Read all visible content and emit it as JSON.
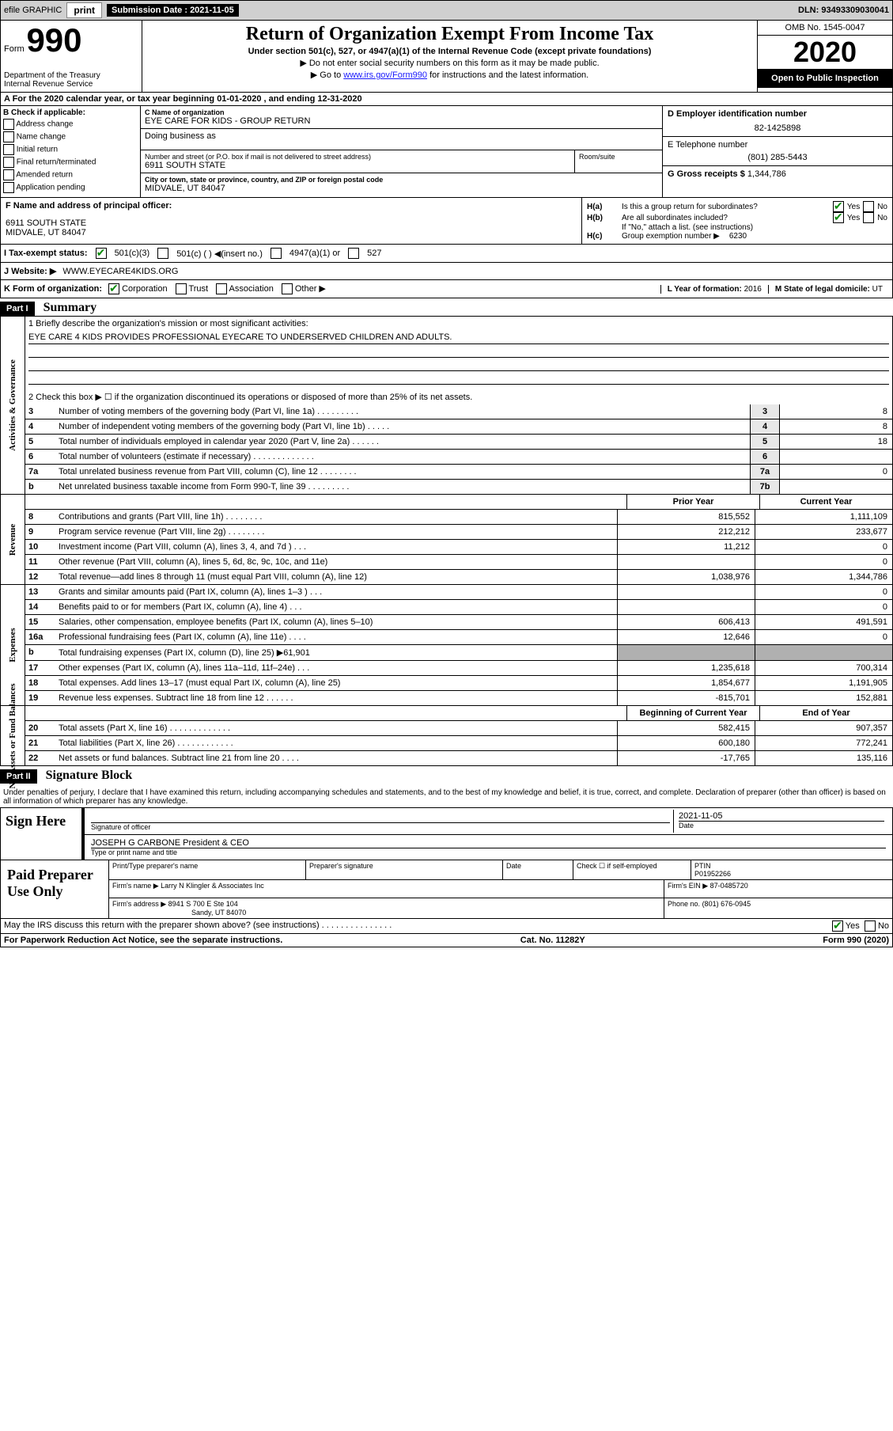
{
  "topbar": {
    "efile": "efile GRAPHIC",
    "print": "print",
    "sub_label": "Submission Date :",
    "sub_date": "2021-11-05",
    "dln": "DLN: 93493309030041"
  },
  "header": {
    "form": "Form",
    "num": "990",
    "dept": "Department of the Treasury",
    "irs": "Internal Revenue Service",
    "title": "Return of Organization Exempt From Income Tax",
    "sub": "Under section 501(c), 527, or 4947(a)(1) of the Internal Revenue Code (except private foundations)",
    "inst1": "▶ Do not enter social security numbers on this form as it may be made public.",
    "inst2_a": "▶ Go to ",
    "inst2_link": "www.irs.gov/Form990",
    "inst2_b": " for instructions and the latest information.",
    "omb": "OMB No. 1545-0047",
    "year": "2020",
    "inspection": "Open to Public Inspection"
  },
  "a_line": "A For the 2020 calendar year, or tax year beginning 01-01-2020    , and ending 12-31-2020",
  "b": {
    "label": "B Check if applicable:",
    "items": [
      "Address change",
      "Name change",
      "Initial return",
      "Final return/terminated",
      "Amended return",
      "Application pending"
    ]
  },
  "c": {
    "name_lbl": "C Name of organization",
    "name": "EYE CARE FOR KIDS - GROUP RETURN",
    "dba_lbl": "Doing business as",
    "addr_lbl": "Number and street (or P.O. box if mail is not delivered to street address)",
    "room_lbl": "Room/suite",
    "addr": "6911 SOUTH STATE",
    "city_lbl": "City or town, state or province, country, and ZIP or foreign postal code",
    "city": "MIDVALE, UT  84047"
  },
  "d": {
    "ein_lbl": "D Employer identification number",
    "ein": "82-1425898",
    "tel_lbl": "E Telephone number",
    "tel": "(801) 285-5443",
    "g_lbl": "G Gross receipts $",
    "g_val": "1,344,786"
  },
  "f": {
    "label": "F  Name and address of principal officer:",
    "addr1": "6911 SOUTH STATE",
    "addr2": "MIDVALE, UT  84047"
  },
  "h": {
    "a_lbl": "H(a)",
    "a_txt": "Is this a group return for subordinates?",
    "b_lbl": "H(b)",
    "b_txt": "Are all subordinates included?",
    "b_note": "If \"No,\" attach a list. (see instructions)",
    "c_lbl": "H(c)",
    "c_txt": "Group exemption number ▶",
    "c_val": "6230",
    "yes": "Yes",
    "no": "No"
  },
  "i": {
    "label": "I   Tax-exempt status:",
    "opt1": "501(c)(3)",
    "opt2": "501(c) (   ) ◀(insert no.)",
    "opt3": "4947(a)(1) or",
    "opt4": "527"
  },
  "j": {
    "label": "J   Website: ▶",
    "val": "WWW.EYECARE4KIDS.ORG"
  },
  "k": {
    "label": "K Form of organization:",
    "opts": [
      "Corporation",
      "Trust",
      "Association",
      "Other ▶"
    ]
  },
  "l": {
    "label": "L Year of formation:",
    "val": "2016"
  },
  "m": {
    "label": "M State of legal domicile:",
    "val": "UT"
  },
  "part1": {
    "title": "Part I",
    "name": "Summary"
  },
  "gov": {
    "side": "Activities & Governance",
    "l1": "1    Briefly describe the organization's mission or most significant activities:",
    "mission": "EYE CARE 4 KIDS PROVIDES PROFESSIONAL EYECARE TO UNDERSERVED CHILDREN AND ADULTS.",
    "l2": "2    Check this box ▶ ☐  if the organization discontinued its operations or disposed of more than 25% of its net assets.",
    "rows": [
      {
        "n": "3",
        "t": "Number of voting members of the governing body (Part VI, line 1a)  .    .    .    .    .    .    .    .    .",
        "b": "3",
        "v": "8"
      },
      {
        "n": "4",
        "t": "Number of independent voting members of the governing body (Part VI, line 1b)   .    .    .    .    .",
        "b": "4",
        "v": "8"
      },
      {
        "n": "5",
        "t": "Total number of individuals employed in calendar year 2020 (Part V, line 2a)    .    .    .    .    .    .",
        "b": "5",
        "v": "18"
      },
      {
        "n": "6",
        "t": "Total number of volunteers (estimate if necessary)   .    .    .    .    .    .    .    .    .    .    .    .    .",
        "b": "6",
        "v": ""
      },
      {
        "n": "7a",
        "t": "Total unrelated business revenue from Part VIII, column (C), line 12   .    .    .    .    .    .    .    .",
        "b": "7a",
        "v": "0"
      },
      {
        "n": "b",
        "t": "Net unrelated business taxable income from Form 990-T, line 39   .    .    .    .    .    .    .    .    .",
        "b": "7b",
        "v": ""
      }
    ]
  },
  "rev": {
    "side": "Revenue",
    "head_p": "Prior Year",
    "head_c": "Current Year",
    "rows": [
      {
        "n": "8",
        "t": "Contributions and grants (Part VIII, line 1h)    .    .    .    .    .    .    .    .",
        "p": "815,552",
        "c": "1,111,109"
      },
      {
        "n": "9",
        "t": "Program service revenue (Part VIII, line 2g)    .    .    .    .    .    .    .    .",
        "p": "212,212",
        "c": "233,677"
      },
      {
        "n": "10",
        "t": "Investment income (Part VIII, column (A), lines 3, 4, and 7d )    .    .    .",
        "p": "11,212",
        "c": "0"
      },
      {
        "n": "11",
        "t": "Other revenue (Part VIII, column (A), lines 5, 6d, 8c, 9c, 10c, and 11e)",
        "p": "",
        "c": "0"
      },
      {
        "n": "12",
        "t": "Total revenue—add lines 8 through 11 (must equal Part VIII, column (A), line 12)",
        "p": "1,038,976",
        "c": "1,344,786"
      }
    ]
  },
  "exp": {
    "side": "Expenses",
    "rows": [
      {
        "n": "13",
        "t": "Grants and similar amounts paid (Part IX, column (A), lines 1–3 )   .    .    .",
        "p": "",
        "c": "0"
      },
      {
        "n": "14",
        "t": "Benefits paid to or for members (Part IX, column (A), line 4)    .    .    .",
        "p": "",
        "c": "0"
      },
      {
        "n": "15",
        "t": "Salaries, other compensation, employee benefits (Part IX, column (A), lines 5–10)",
        "p": "606,413",
        "c": "491,591"
      },
      {
        "n": "16a",
        "t": "Professional fundraising fees (Part IX, column (A), line 11e)    .    .    .    .",
        "p": "12,646",
        "c": "0"
      },
      {
        "n": "b",
        "t": "Total fundraising expenses (Part IX, column (D), line 25) ▶61,901",
        "p": "shade",
        "c": "shade"
      },
      {
        "n": "17",
        "t": "Other expenses (Part IX, column (A), lines 11a–11d, 11f–24e)   .    .    .",
        "p": "1,235,618",
        "c": "700,314"
      },
      {
        "n": "18",
        "t": "Total expenses. Add lines 13–17 (must equal Part IX, column (A), line 25)",
        "p": "1,854,677",
        "c": "1,191,905"
      },
      {
        "n": "19",
        "t": "Revenue less expenses. Subtract line 18 from line 12   .    .    .    .    .    .",
        "p": "-815,701",
        "c": "152,881"
      }
    ]
  },
  "net": {
    "side": "Net Assets or Fund Balances",
    "head_p": "Beginning of Current Year",
    "head_c": "End of Year",
    "rows": [
      {
        "n": "20",
        "t": "Total assets (Part X, line 16)   .    .    .    .    .    .    .    .    .    .    .    .    .",
        "p": "582,415",
        "c": "907,357"
      },
      {
        "n": "21",
        "t": "Total liabilities (Part X, line 26)   .    .    .    .    .    .    .    .    .    .    .    .",
        "p": "600,180",
        "c": "772,241"
      },
      {
        "n": "22",
        "t": "Net assets or fund balances. Subtract line 21 from line 20    .    .    .    .",
        "p": "-17,765",
        "c": "135,116"
      }
    ]
  },
  "part2": {
    "title": "Part II",
    "name": "Signature Block"
  },
  "perjury": "Under penalties of perjury, I declare that I have examined this return, including accompanying schedules and statements, and to the best of my knowledge and belief, it is true, correct, and complete. Declaration of preparer (other than officer) is based on all information of which preparer has any knowledge.",
  "sign": {
    "label": "Sign Here",
    "sig": "Signature of officer",
    "date_lbl": "Date",
    "date": "2021-11-05",
    "name": "JOSEPH G CARBONE  President & CEO",
    "name_lbl": "Type or print name and title"
  },
  "prep": {
    "label": "Paid Preparer Use Only",
    "h1": "Print/Type preparer's name",
    "h2": "Preparer's signature",
    "h3": "Date",
    "h4": "Check ☐ if self-employed",
    "h5_lbl": "PTIN",
    "h5": "P01952266",
    "firm_lbl": "Firm's name      ▶",
    "firm": "Larry N Klingler & Associates Inc",
    "ein_lbl": "Firm's EIN ▶",
    "ein": "87-0485720",
    "addr_lbl": "Firm's address ▶",
    "addr1": "8941 S 700 E Ste 104",
    "addr2": "Sandy, UT  84070",
    "phone_lbl": "Phone no.",
    "phone": "(801) 676-0945",
    "discuss": "May the IRS discuss this return with the preparer shown above? (see instructions)    .    .    .    .    .    .    .    .    .    .    .    .    .    .    ."
  },
  "footer": {
    "left": "For Paperwork Reduction Act Notice, see the separate instructions.",
    "mid": "Cat. No. 11282Y",
    "right": "Form 990 (2020)"
  }
}
